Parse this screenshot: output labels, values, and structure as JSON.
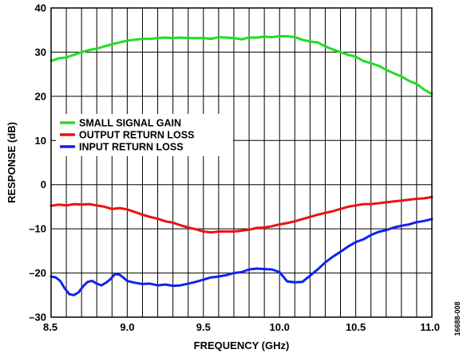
{
  "figure_id": "16688-008",
  "chart_data": {
    "type": "line",
    "xlabel": "FREQUENCY (GHz)",
    "ylabel": "RESPONSE (dB)",
    "xlim": [
      8.5,
      11.0
    ],
    "ylim": [
      -30,
      40
    ],
    "xticks": [
      8.5,
      9.0,
      9.5,
      10.0,
      10.5,
      11.0
    ],
    "xtick_labels": [
      "8.5",
      "9.0",
      "9.5",
      "10.0",
      "10.5",
      "11.0"
    ],
    "yticks": [
      -30,
      -20,
      -10,
      0,
      10,
      20,
      30,
      40
    ],
    "ytick_labels": [
      "–30",
      "–20",
      "–10",
      "0",
      "10",
      "20",
      "30",
      "40"
    ],
    "grid": true,
    "legend_position": "middle-left",
    "series": [
      {
        "name": "SMALL SIGNAL GAIN",
        "color": "#22dd22",
        "x": [
          8.5,
          8.55,
          8.6,
          8.65,
          8.7,
          8.75,
          8.8,
          8.85,
          8.9,
          8.95,
          9.0,
          9.05,
          9.1,
          9.15,
          9.2,
          9.25,
          9.3,
          9.35,
          9.4,
          9.45,
          9.5,
          9.55,
          9.6,
          9.65,
          9.7,
          9.75,
          9.8,
          9.85,
          9.9,
          9.95,
          10.0,
          10.05,
          10.1,
          10.15,
          10.2,
          10.25,
          10.3,
          10.35,
          10.4,
          10.45,
          10.5,
          10.55,
          10.6,
          10.65,
          10.7,
          10.75,
          10.8,
          10.85,
          10.9,
          10.95,
          11.0
        ],
        "y": [
          28.0,
          28.6,
          28.8,
          29.4,
          30.0,
          30.5,
          30.8,
          31.3,
          31.8,
          32.2,
          32.6,
          32.8,
          33.0,
          33.0,
          33.2,
          33.3,
          33.2,
          33.3,
          33.2,
          33.2,
          33.2,
          33.0,
          33.4,
          33.3,
          33.2,
          32.9,
          33.3,
          33.3,
          33.5,
          33.4,
          33.6,
          33.6,
          33.4,
          32.8,
          32.4,
          32.2,
          31.3,
          30.6,
          30.0,
          29.4,
          29.0,
          28.0,
          27.5,
          26.9,
          26.0,
          25.2,
          24.5,
          23.5,
          22.8,
          21.5,
          20.5
        ]
      },
      {
        "name": "OUTPUT RETURN LOSS",
        "color": "#ee1111",
        "x": [
          8.5,
          8.55,
          8.6,
          8.65,
          8.7,
          8.75,
          8.8,
          8.85,
          8.9,
          8.95,
          9.0,
          9.05,
          9.1,
          9.15,
          9.2,
          9.25,
          9.3,
          9.35,
          9.4,
          9.45,
          9.5,
          9.55,
          9.6,
          9.65,
          9.7,
          9.75,
          9.8,
          9.85,
          9.9,
          9.95,
          10.0,
          10.05,
          10.1,
          10.15,
          10.2,
          10.25,
          10.3,
          10.35,
          10.4,
          10.45,
          10.5,
          10.55,
          10.6,
          10.65,
          10.7,
          10.75,
          10.8,
          10.85,
          10.9,
          10.95,
          11.0
        ],
        "y": [
          -4.8,
          -4.5,
          -4.7,
          -4.4,
          -4.5,
          -4.4,
          -4.7,
          -5.0,
          -5.5,
          -5.3,
          -5.6,
          -6.2,
          -6.8,
          -7.3,
          -7.7,
          -8.3,
          -8.6,
          -9.2,
          -9.7,
          -10.1,
          -10.6,
          -10.8,
          -10.6,
          -10.6,
          -10.6,
          -10.4,
          -10.2,
          -9.8,
          -9.7,
          -9.4,
          -9.0,
          -8.7,
          -8.3,
          -7.8,
          -7.3,
          -6.8,
          -6.4,
          -6.0,
          -5.5,
          -5.0,
          -4.7,
          -4.4,
          -4.4,
          -4.2,
          -4.0,
          -3.8,
          -3.6,
          -3.4,
          -3.2,
          -3.1,
          -2.8
        ]
      },
      {
        "name": "INPUT RETURN LOSS",
        "color": "#1122ee",
        "x": [
          8.5,
          8.53,
          8.56,
          8.59,
          8.62,
          8.65,
          8.68,
          8.71,
          8.74,
          8.77,
          8.8,
          8.83,
          8.86,
          8.89,
          8.92,
          8.95,
          8.98,
          9.0,
          9.05,
          9.1,
          9.15,
          9.2,
          9.25,
          9.3,
          9.35,
          9.4,
          9.45,
          9.5,
          9.55,
          9.6,
          9.65,
          9.7,
          9.75,
          9.8,
          9.85,
          9.9,
          9.95,
          10.0,
          10.05,
          10.1,
          10.15,
          10.2,
          10.25,
          10.3,
          10.35,
          10.4,
          10.45,
          10.5,
          10.55,
          10.6,
          10.65,
          10.7,
          10.75,
          10.8,
          10.85,
          10.9,
          10.95,
          11.0
        ],
        "y": [
          -20.8,
          -21.0,
          -21.8,
          -23.5,
          -24.8,
          -25.0,
          -24.4,
          -23.0,
          -22.0,
          -21.8,
          -22.4,
          -22.8,
          -22.2,
          -21.4,
          -20.2,
          -20.4,
          -21.2,
          -21.8,
          -22.2,
          -22.5,
          -22.4,
          -22.8,
          -22.6,
          -22.9,
          -22.8,
          -22.4,
          -22.0,
          -21.5,
          -21.0,
          -20.8,
          -20.5,
          -20.0,
          -19.8,
          -19.2,
          -19.0,
          -19.1,
          -19.2,
          -19.8,
          -21.9,
          -22.1,
          -22.0,
          -20.6,
          -19.2,
          -17.6,
          -16.3,
          -15.2,
          -14.0,
          -13.0,
          -12.4,
          -11.4,
          -10.7,
          -10.3,
          -9.7,
          -9.3,
          -9.0,
          -8.5,
          -8.2,
          -7.8
        ]
      }
    ]
  }
}
